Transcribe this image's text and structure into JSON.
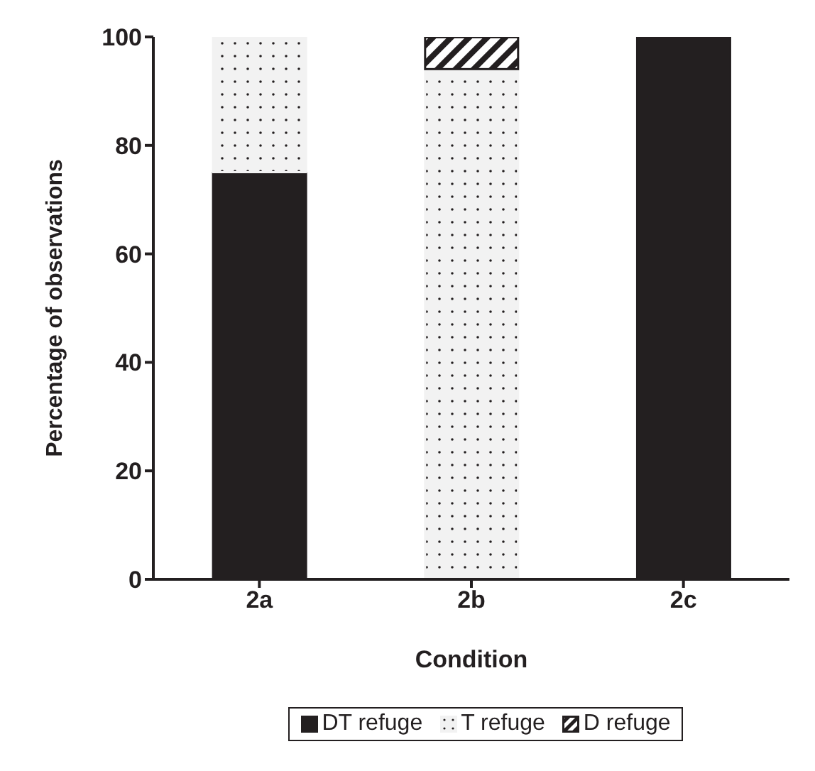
{
  "chart_data": {
    "type": "bar",
    "stacked": true,
    "xlabel": "Condition",
    "ylabel": "Percentage of observations",
    "categories": [
      "2a",
      "2b",
      "2c"
    ],
    "series": [
      {
        "name": "DT refuge",
        "color": "#231f20",
        "values": [
          75,
          0,
          100
        ]
      },
      {
        "name": "T refuge",
        "color": "#f2f2f2",
        "values": [
          25,
          94,
          0
        ]
      },
      {
        "name": "D refuge",
        "color": "#231f20",
        "values": [
          0,
          6,
          0
        ]
      }
    ],
    "ylim": [
      0,
      100
    ],
    "yticks": [
      0,
      20,
      40,
      60,
      80,
      100
    ],
    "grid": false,
    "legend": "bottom"
  }
}
